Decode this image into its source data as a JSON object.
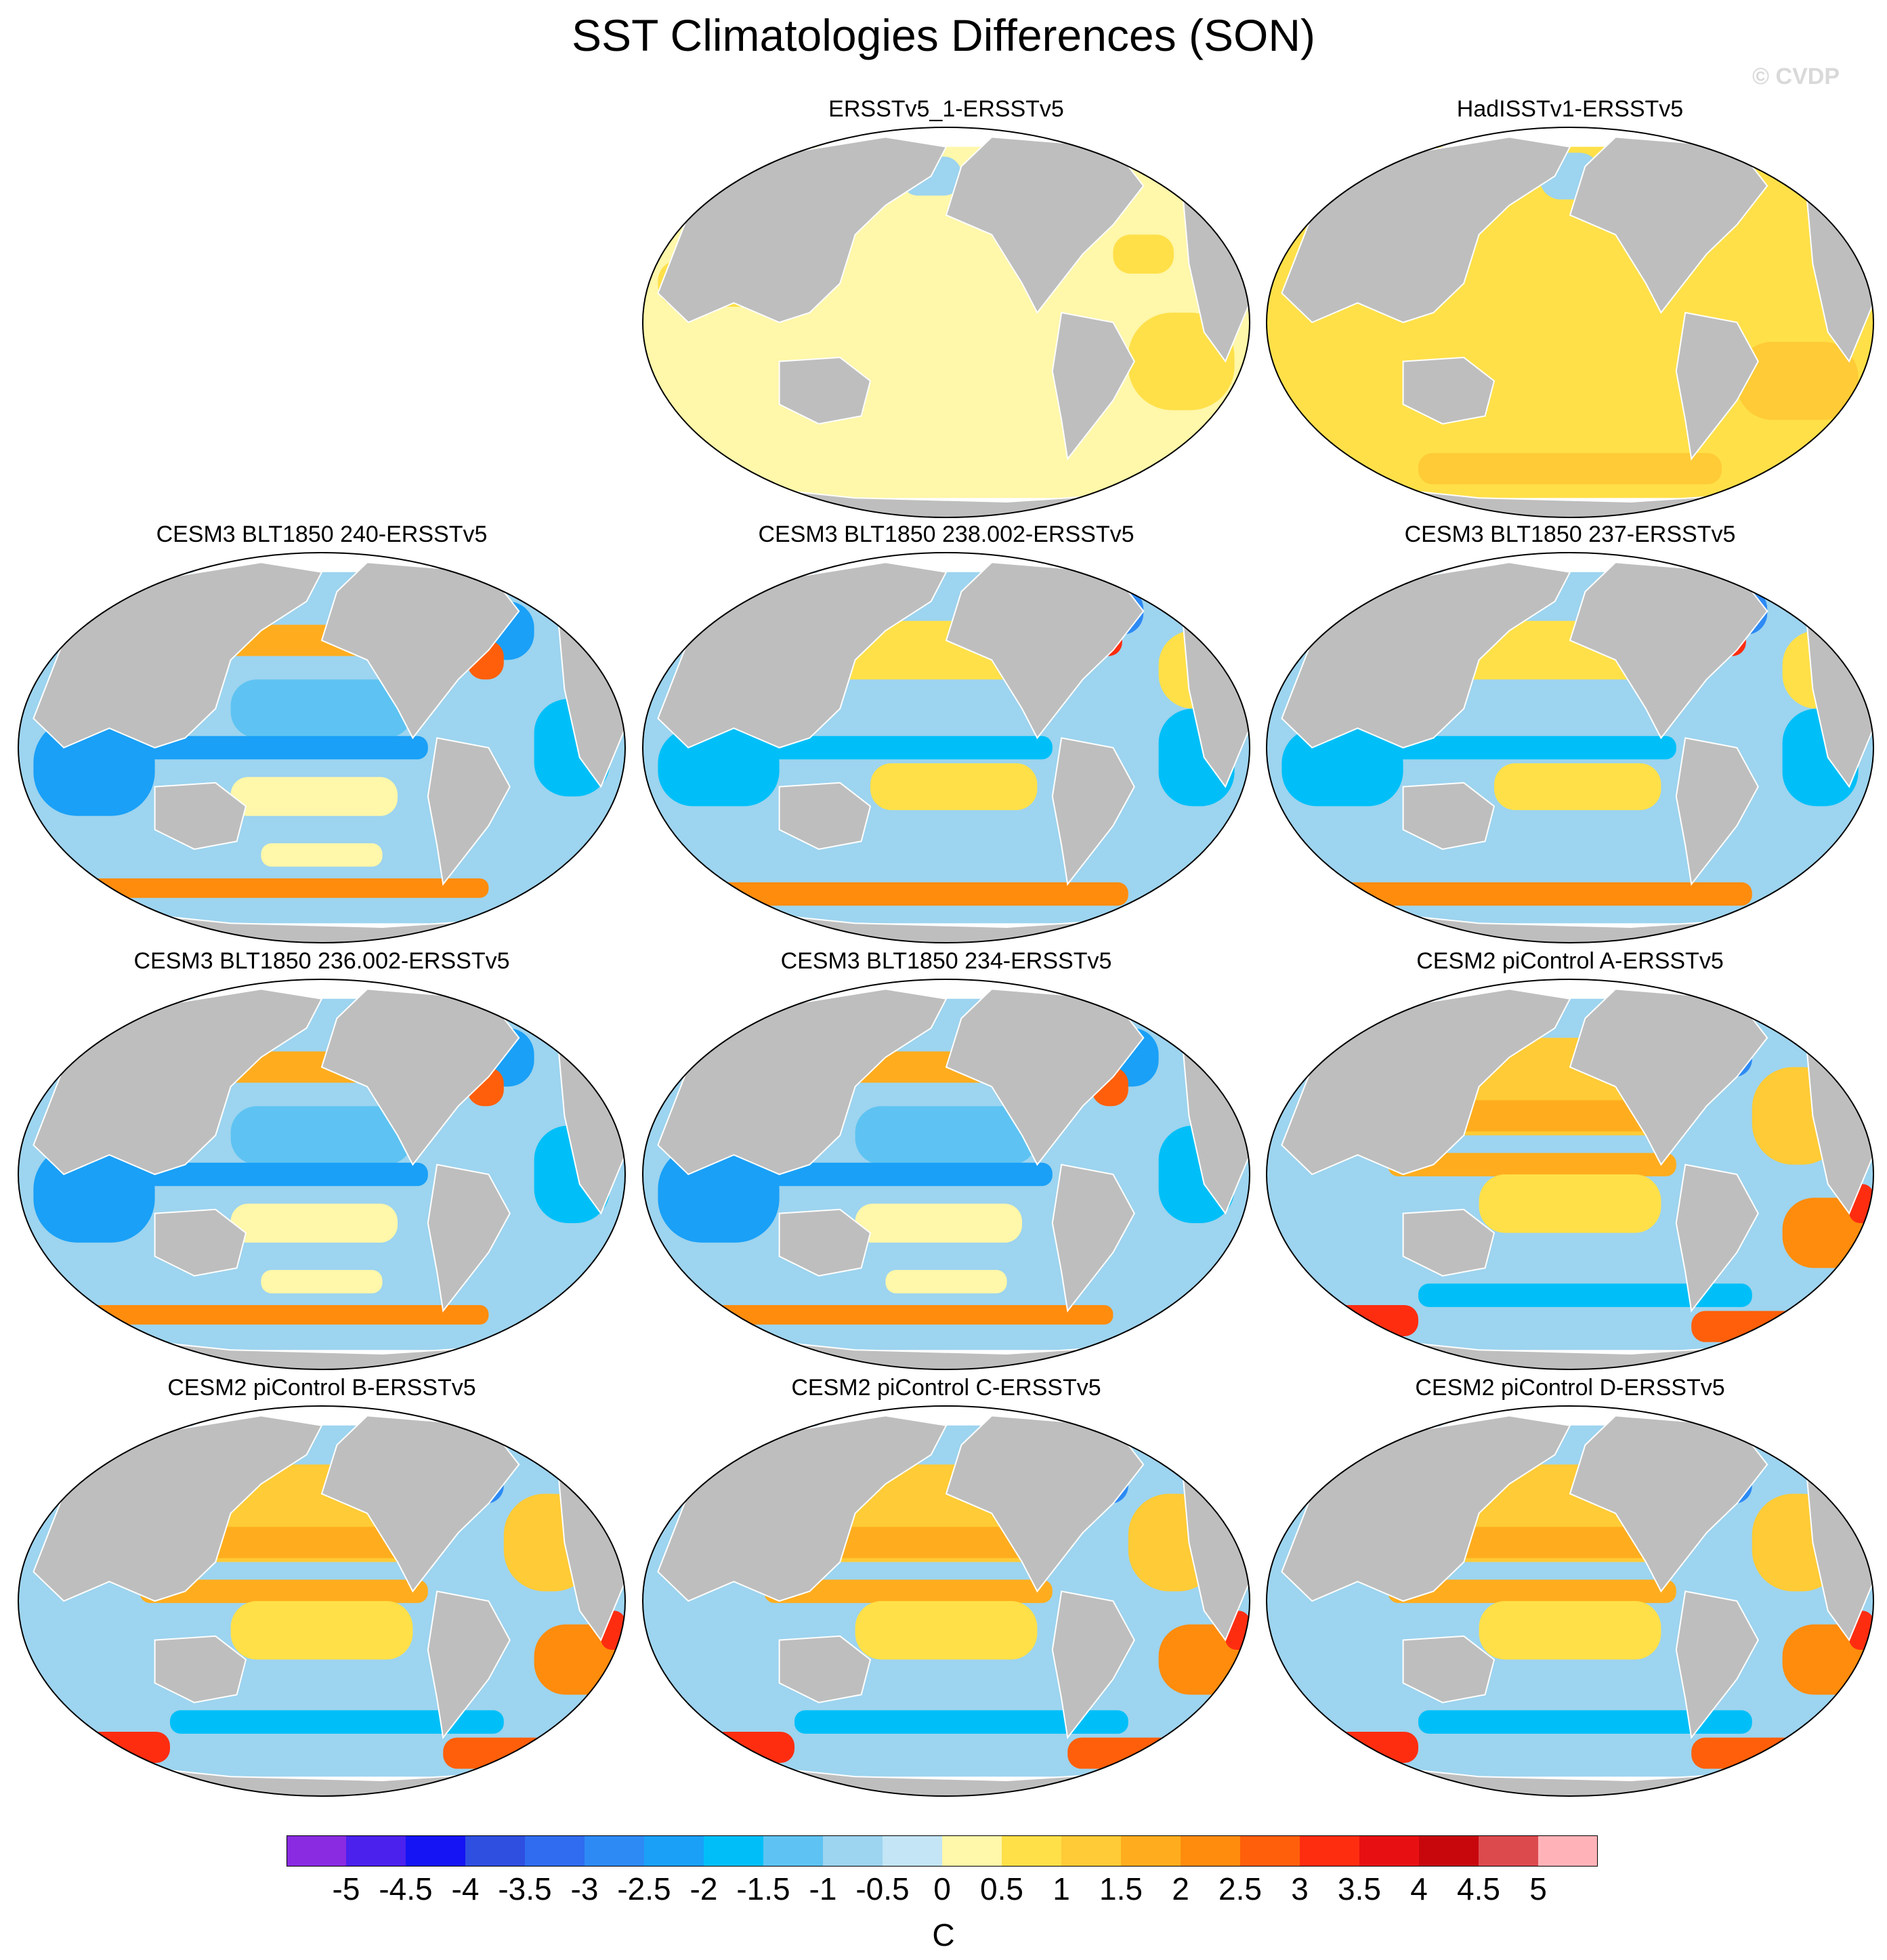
{
  "figure": {
    "title": "SST Climatologies Differences (SON)",
    "watermark": "© CVDP"
  },
  "panels": [
    {
      "title": "ERSSTv5_1-ERSSTv5",
      "pattern": "obs_small",
      "row": 0,
      "col": 1
    },
    {
      "title": "HadISSTv1-ERSSTv5",
      "pattern": "obs_warm",
      "row": 0,
      "col": 2
    },
    {
      "title": "CESM3 BLT1850 240-ERSSTv5",
      "pattern": "cesm3_cold",
      "row": 1,
      "col": 0
    },
    {
      "title": "CESM3 BLT1850 238.002-ERSSTv5",
      "pattern": "cesm3_mixed",
      "row": 1,
      "col": 1
    },
    {
      "title": "CESM3 BLT1850 237-ERSSTv5",
      "pattern": "cesm3_mixed",
      "row": 1,
      "col": 2
    },
    {
      "title": "CESM3 BLT1850 236.002-ERSSTv5",
      "pattern": "cesm3_cold",
      "row": 2,
      "col": 0
    },
    {
      "title": "CESM3 BLT1850 234-ERSSTv5",
      "pattern": "cesm3_cold",
      "row": 2,
      "col": 1
    },
    {
      "title": "CESM2 piControl A-ERSSTv5",
      "pattern": "cesm2_warm",
      "row": 2,
      "col": 2
    },
    {
      "title": "CESM2 piControl B-ERSSTv5",
      "pattern": "cesm2_warm",
      "row": 3,
      "col": 0
    },
    {
      "title": "CESM2 piControl C-ERSSTv5",
      "pattern": "cesm2_warm",
      "row": 3,
      "col": 1
    },
    {
      "title": "CESM2 piControl D-ERSSTv5",
      "pattern": "cesm2_warm",
      "row": 3,
      "col": 2
    }
  ],
  "colorbar": {
    "unit": "C",
    "labels": [
      "-5",
      "-4.5",
      "-4",
      "-3.5",
      "-3",
      "-2.5",
      "-2",
      "-1.5",
      "-1",
      "-0.5",
      "0",
      "0.5",
      "1",
      "1.5",
      "2",
      "2.5",
      "3",
      "3.5",
      "4",
      "4.5",
      "5"
    ],
    "colors": [
      "#8a2be2",
      "#4b21ee",
      "#1414f5",
      "#2e4fe0",
      "#2f6cf0",
      "#2d8af5",
      "#1aa0f7",
      "#00bff8",
      "#5ec3f2",
      "#9dd4ef",
      "#c3e5f5",
      "#fff7a9",
      "#ffe049",
      "#ffcb36",
      "#ffad1e",
      "#ff8c0d",
      "#ff5f0a",
      "#ff2d10",
      "#e80f12",
      "#c8070d",
      "#dc4a4e",
      "#ffb3b8"
    ],
    "land_color": "#bebebe"
  }
}
